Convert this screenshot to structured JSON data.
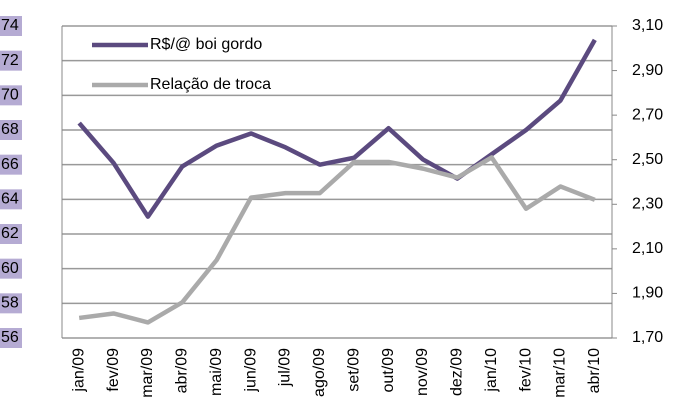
{
  "chart_data": {
    "type": "line",
    "categories": [
      "jan/09",
      "fev/09",
      "mar/09",
      "abr/09",
      "mai/09",
      "jun/09",
      "jul/09",
      "ago/09",
      "set/09",
      "out/09",
      "nov/09",
      "dez/09",
      "jan/10",
      "fev/10",
      "mar/10",
      "abr/10"
    ],
    "series": [
      {
        "name": "R$/@ boi gordo",
        "color": "#5b4a7f",
        "values": [
          68.4,
          66.1,
          63.0,
          65.9,
          67.1,
          67.8,
          67.0,
          66.0,
          66.4,
          68.1,
          66.3,
          65.2,
          66.6,
          68.0,
          69.7,
          73.2
        ]
      },
      {
        "name": "Relação de troca",
        "color": "#aaaaaa",
        "axis": "y2",
        "values": [
          1.79,
          1.81,
          1.77,
          1.86,
          2.05,
          2.33,
          2.35,
          2.35,
          2.49,
          2.49,
          2.46,
          2.42,
          2.51,
          2.28,
          2.38,
          2.32
        ]
      }
    ],
    "ylim": [
      56,
      74
    ],
    "yticks": [
      56,
      58,
      60,
      62,
      64,
      66,
      68,
      70,
      72,
      74
    ],
    "y2lim": [
      1.7,
      3.1
    ],
    "y2ticks": [
      {
        "value": 1.7,
        "label": "1,70"
      },
      {
        "value": 1.9,
        "label": "1,90"
      },
      {
        "value": 2.1,
        "label": "2,10"
      },
      {
        "value": 2.3,
        "label": "2,30"
      },
      {
        "value": 2.5,
        "label": "2,50"
      },
      {
        "value": 2.7,
        "label": "2,70"
      },
      {
        "value": 2.9,
        "label": "2,90"
      },
      {
        "value": 3.1,
        "label": "3,10"
      }
    ],
    "grid": true,
    "legend": "top-left"
  }
}
